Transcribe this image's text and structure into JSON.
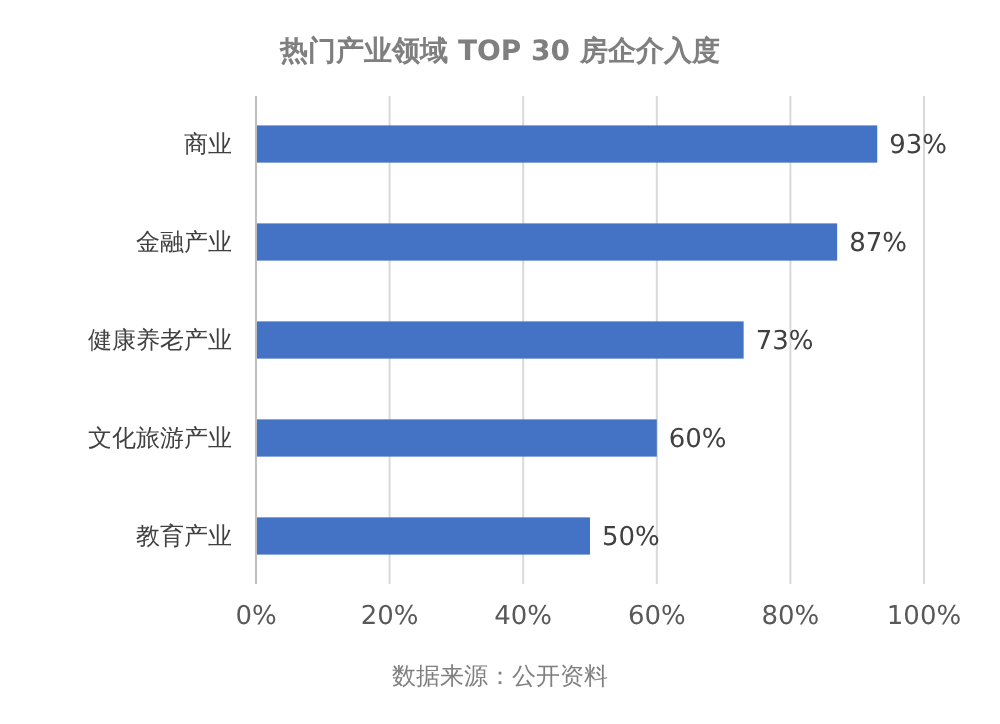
{
  "chart_data": {
    "type": "bar",
    "orientation": "horizontal",
    "title": "热门产业领域 TOP 30 房企介入度",
    "categories": [
      "商业",
      "金融产业",
      "健康养老产业",
      "文化旅游产业",
      "教育产业"
    ],
    "values": [
      93,
      87,
      73,
      60,
      50
    ],
    "value_labels": [
      "93%",
      "87%",
      "73%",
      "60%",
      "50%"
    ],
    "color": "#4472c4",
    "xlim": [
      0,
      100
    ],
    "xticks": [
      {
        "value": 0,
        "label": "0%"
      },
      {
        "value": 20,
        "label": "20%"
      },
      {
        "value": 40,
        "label": "40%"
      },
      {
        "value": 60,
        "label": "60%"
      },
      {
        "value": 80,
        "label": "80%"
      },
      {
        "value": 100,
        "label": "100%"
      }
    ],
    "grid": "x",
    "annotations": [
      "数据来源：公开资料"
    ]
  }
}
